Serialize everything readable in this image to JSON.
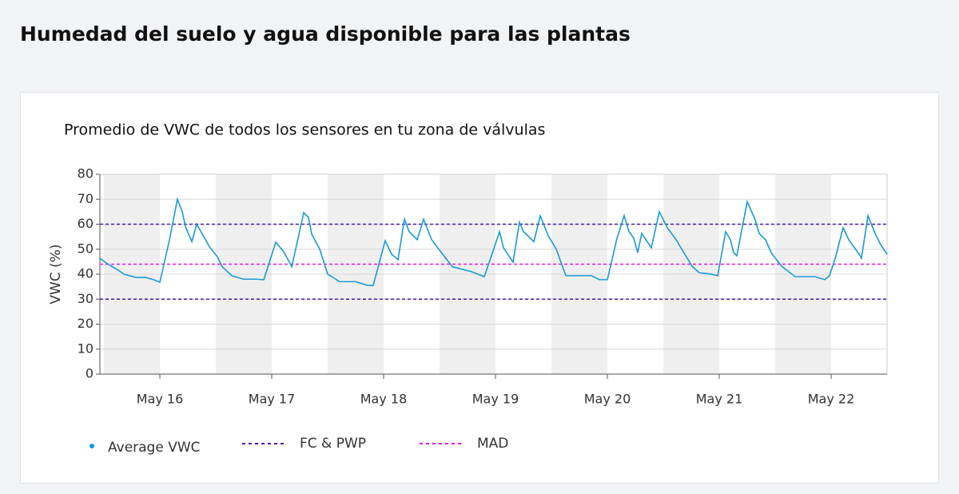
{
  "header": {
    "title": "Humedad del suelo y agua disponible para las plantas"
  },
  "chart_data": {
    "type": "line",
    "title": "Promedio de VWC de todos los sensores en tu zona de válvulas",
    "ylabel": "VWC (%)",
    "x": [
      15.464,
      15.536,
      15.629,
      15.679,
      15.786,
      15.871,
      15.943,
      16.0,
      16.086,
      16.157,
      16.2,
      16.229,
      16.286,
      16.329,
      16.393,
      16.443,
      16.514,
      16.557,
      16.643,
      16.75,
      16.857,
      16.929,
      17.036,
      17.107,
      17.179,
      17.286,
      17.329,
      17.357,
      17.429,
      17.5,
      17.607,
      17.75,
      17.857,
      17.907,
      18.014,
      18.071,
      18.129,
      18.186,
      18.229,
      18.3,
      18.357,
      18.429,
      18.5,
      18.614,
      18.786,
      18.9,
      18.964,
      19.036,
      19.071,
      19.157,
      19.214,
      19.25,
      19.343,
      19.4,
      19.471,
      19.543,
      19.629,
      19.857,
      19.929,
      20.0,
      20.086,
      20.15,
      20.193,
      20.236,
      20.271,
      20.307,
      20.393,
      20.464,
      20.536,
      20.614,
      20.657,
      20.757,
      20.821,
      20.929,
      20.986,
      21.057,
      21.1,
      21.129,
      21.157,
      21.25,
      21.321,
      21.357,
      21.414,
      21.464,
      21.557,
      21.679,
      21.857,
      21.943,
      21.986,
      22.043,
      22.107,
      22.157,
      22.25,
      22.271,
      22.329,
      22.393,
      22.443,
      22.5
    ],
    "series": [
      {
        "name": "Average VWC",
        "color": "#1a9ad6",
        "values": [
          46.4,
          44,
          41.6,
          40,
          38.7,
          38.7,
          37.8,
          36.8,
          53.8,
          70,
          65,
          59,
          53,
          60,
          55,
          51,
          47,
          43,
          39.4,
          38,
          38,
          37.8,
          52.8,
          49,
          43,
          64.6,
          62.7,
          56,
          50,
          40,
          37,
          37,
          35.5,
          35.5,
          53.4,
          48,
          45.8,
          62,
          57,
          53.8,
          62,
          53.8,
          49.6,
          43,
          41,
          39,
          47.4,
          57,
          50.6,
          44.8,
          60.8,
          57,
          53,
          63.4,
          55.4,
          50,
          39.4,
          39.4,
          37.8,
          37.8,
          54.4,
          63.4,
          57,
          54.4,
          48.6,
          56.3,
          50.6,
          65,
          58.6,
          53.8,
          50.6,
          43.2,
          40.6,
          40,
          39.4,
          57,
          53.8,
          48.6,
          47.4,
          69,
          61.8,
          56.3,
          53.8,
          48.6,
          43.2,
          39,
          39,
          37.8,
          39.4,
          47.4,
          58.6,
          53.8,
          48,
          46.4,
          63.4,
          56.3,
          51.8,
          48
        ]
      }
    ],
    "reference_lines": [
      {
        "name": "FC & PWP",
        "color": "#4b1fa0",
        "values": [
          60,
          30
        ]
      },
      {
        "name": "MAD",
        "color": "#e619e6",
        "values": [
          44
        ]
      }
    ],
    "xlim": [
      15.464,
      22.5
    ],
    "ylim": [
      0,
      80
    ],
    "xticks": [
      {
        "value": 16,
        "label": "May 16"
      },
      {
        "value": 17,
        "label": "May 17"
      },
      {
        "value": 18,
        "label": "May 18"
      },
      {
        "value": 19,
        "label": "May 19"
      },
      {
        "value": 20,
        "label": "May 20"
      },
      {
        "value": 21,
        "label": "May 21"
      },
      {
        "value": 22,
        "label": "May 22"
      }
    ],
    "yticks": [
      0,
      10,
      20,
      30,
      40,
      50,
      60,
      70,
      80
    ],
    "grid": true
  }
}
